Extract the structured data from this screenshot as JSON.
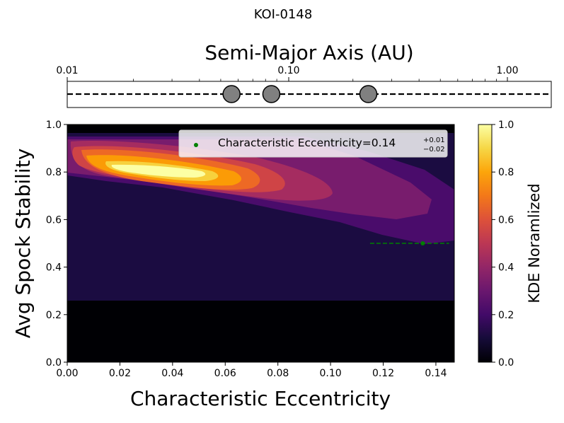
{
  "figure": {
    "title": "KOI-0148"
  },
  "chart_data": [
    {
      "type": "scatter",
      "title": "",
      "xlabel": "Semi-Major Axis (AU)",
      "ylabel": "",
      "x_scale": "log",
      "xlim": [
        0.01,
        1.6
      ],
      "x_ticks": [
        0.01,
        0.1,
        1.0
      ],
      "x_tick_labels": [
        "0.01",
        "0.10",
        "1.00"
      ],
      "x_ticks_position": "top",
      "reference_line": "dashed horizontal",
      "planets": [
        {
          "semi_major_axis_au": 0.056
        },
        {
          "semi_major_axis_au": 0.085
        },
        {
          "semi_major_axis_au": 0.235
        }
      ],
      "colors": {
        "planet_fill": "#808080",
        "planet_edge": "#000000"
      }
    },
    {
      "type": "heatmap",
      "title": "",
      "xlabel": "Characteristic Eccentricity",
      "ylabel": "Avg Spock Stability",
      "xlim": [
        0.0,
        0.147
      ],
      "ylim": [
        0.0,
        1.0
      ],
      "x_tick_labels": [
        "0.00",
        "0.02",
        "0.04",
        "0.06",
        "0.08",
        "0.10",
        "0.12",
        "0.14"
      ],
      "y_tick_labels": [
        "0.0",
        "0.2",
        "0.4",
        "0.6",
        "0.8",
        "1.0"
      ],
      "colormap": "inferno",
      "colorbar": {
        "label": "KDE Noramlized",
        "range": [
          0.0,
          1.0
        ],
        "tick_labels": [
          "0.0",
          "0.2",
          "0.4",
          "0.6",
          "0.8",
          "1.0"
        ]
      },
      "kde_filled_contours": [
        {
          "level": 0.1,
          "color": "#1b0c41",
          "region": "x 0.000-0.147, y 0.265-0.967"
        },
        {
          "level": 0.2,
          "color": "#4a0c6b",
          "region": "x 0.000-0.147, y 0.50-0.95"
        },
        {
          "level": 0.3,
          "color": "#781c6d",
          "region": "x 0.000-0.140, y 0.58-0.94"
        },
        {
          "level": 0.4,
          "color": "#a52c60",
          "region": "x 0.000-0.100, y 0.68-0.93"
        },
        {
          "level": 0.5,
          "color": "#cf4446",
          "region": "x 0.005-0.082, y 0.72-0.90"
        },
        {
          "level": 0.6,
          "color": "#ed6925",
          "region": "x 0.010-0.070, y 0.75-0.88"
        },
        {
          "level": 0.7,
          "color": "#fb9b06",
          "region": "x 0.015-0.062, y 0.76-0.87"
        },
        {
          "level": 0.8,
          "color": "#f7d13d",
          "region": "x 0.022-0.052, y 0.79-0.86"
        },
        {
          "level": 0.9,
          "color": "#fcffa4",
          "region": "x 0.030-0.045, y 0.80-0.85"
        }
      ],
      "legend": {
        "placement": "upper-right",
        "label": "Characteristic Eccentricity=0.14",
        "value_sup": "+0.01",
        "value_sub": "−0.02"
      },
      "marker": {
        "x": 0.135,
        "y": 0.5,
        "x_err_minus": 0.02,
        "x_err_plus": 0.01,
        "color": "#008000",
        "errorbar_style": "dashed"
      }
    }
  ]
}
